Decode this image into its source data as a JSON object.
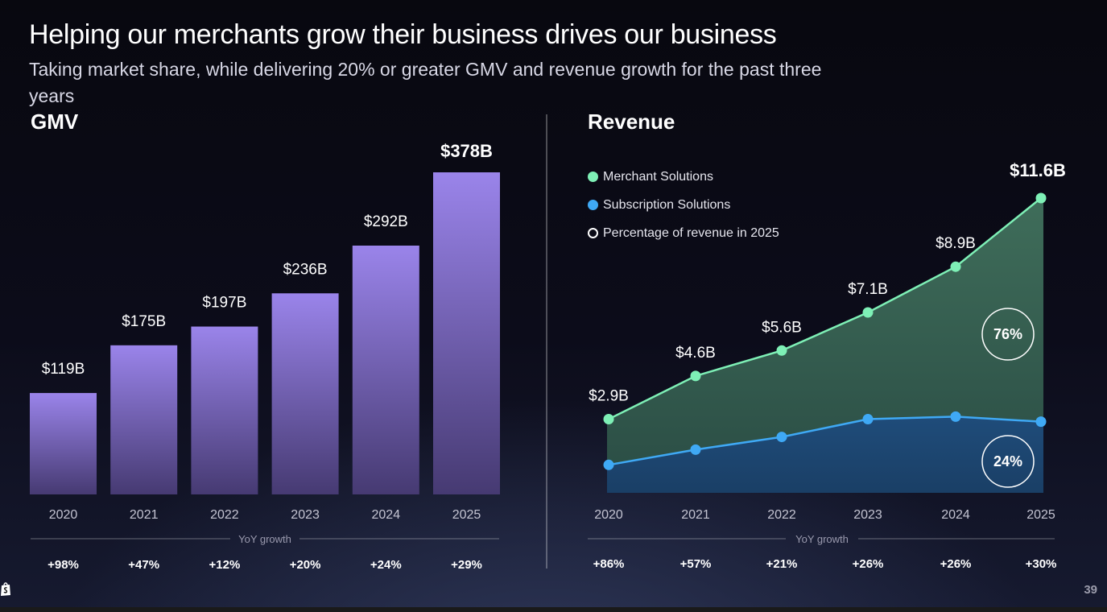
{
  "slide": {
    "title": "Helping our merchants grow their business drives our business",
    "subtitle": "Taking market share, while delivering 20% or greater GMV and revenue growth for the past three years",
    "page_number": "39",
    "logo_icon": "shopify-bag-icon"
  },
  "chart_data": [
    {
      "type": "bar",
      "title": "GMV",
      "categories": [
        "2020",
        "2021",
        "2022",
        "2023",
        "2024",
        "2025"
      ],
      "values": [
        119,
        175,
        197,
        236,
        292,
        378
      ],
      "value_labels": [
        "$119B",
        "$175B",
        "$197B",
        "$236B",
        "$292B",
        "$378B"
      ],
      "unit": "$B",
      "ylim": [
        0,
        400
      ],
      "bar_color": "#9a84ea",
      "growth_label": "YoY growth",
      "growth": [
        "+98%",
        "+47%",
        "+12%",
        "+20%",
        "+24%",
        "+29%"
      ]
    },
    {
      "type": "area",
      "title": "Revenue",
      "categories": [
        "2020",
        "2021",
        "2022",
        "2023",
        "2024",
        "2025"
      ],
      "unit": "$B",
      "ylim": [
        0,
        12
      ],
      "totals": [
        2.9,
        4.6,
        5.6,
        7.1,
        8.9,
        11.6
      ],
      "total_labels": [
        "$2.9B",
        "$4.6B",
        "$5.6B",
        "$7.1B",
        "$8.9B",
        "$11.6B"
      ],
      "series": [
        {
          "name": "Merchant Solutions",
          "color": "#7ef0b6",
          "values": [
            1.8,
            2.9,
            3.4,
            4.2,
            5.9,
            8.8
          ]
        },
        {
          "name": "Subscription Solutions",
          "color": "#3fa9f5",
          "values": [
            1.1,
            1.7,
            2.2,
            2.9,
            3.0,
            2.8
          ]
        }
      ],
      "legend": {
        "items": [
          "Merchant Solutions",
          "Subscription Solutions",
          "Percentage of revenue in 2025"
        ],
        "placement": "top-left"
      },
      "share_2025": {
        "merchant": "76%",
        "subscription": "24%"
      },
      "growth_label": "YoY growth",
      "growth": [
        "+86%",
        "+57%",
        "+21%",
        "+26%",
        "+26%",
        "+30%"
      ]
    }
  ]
}
